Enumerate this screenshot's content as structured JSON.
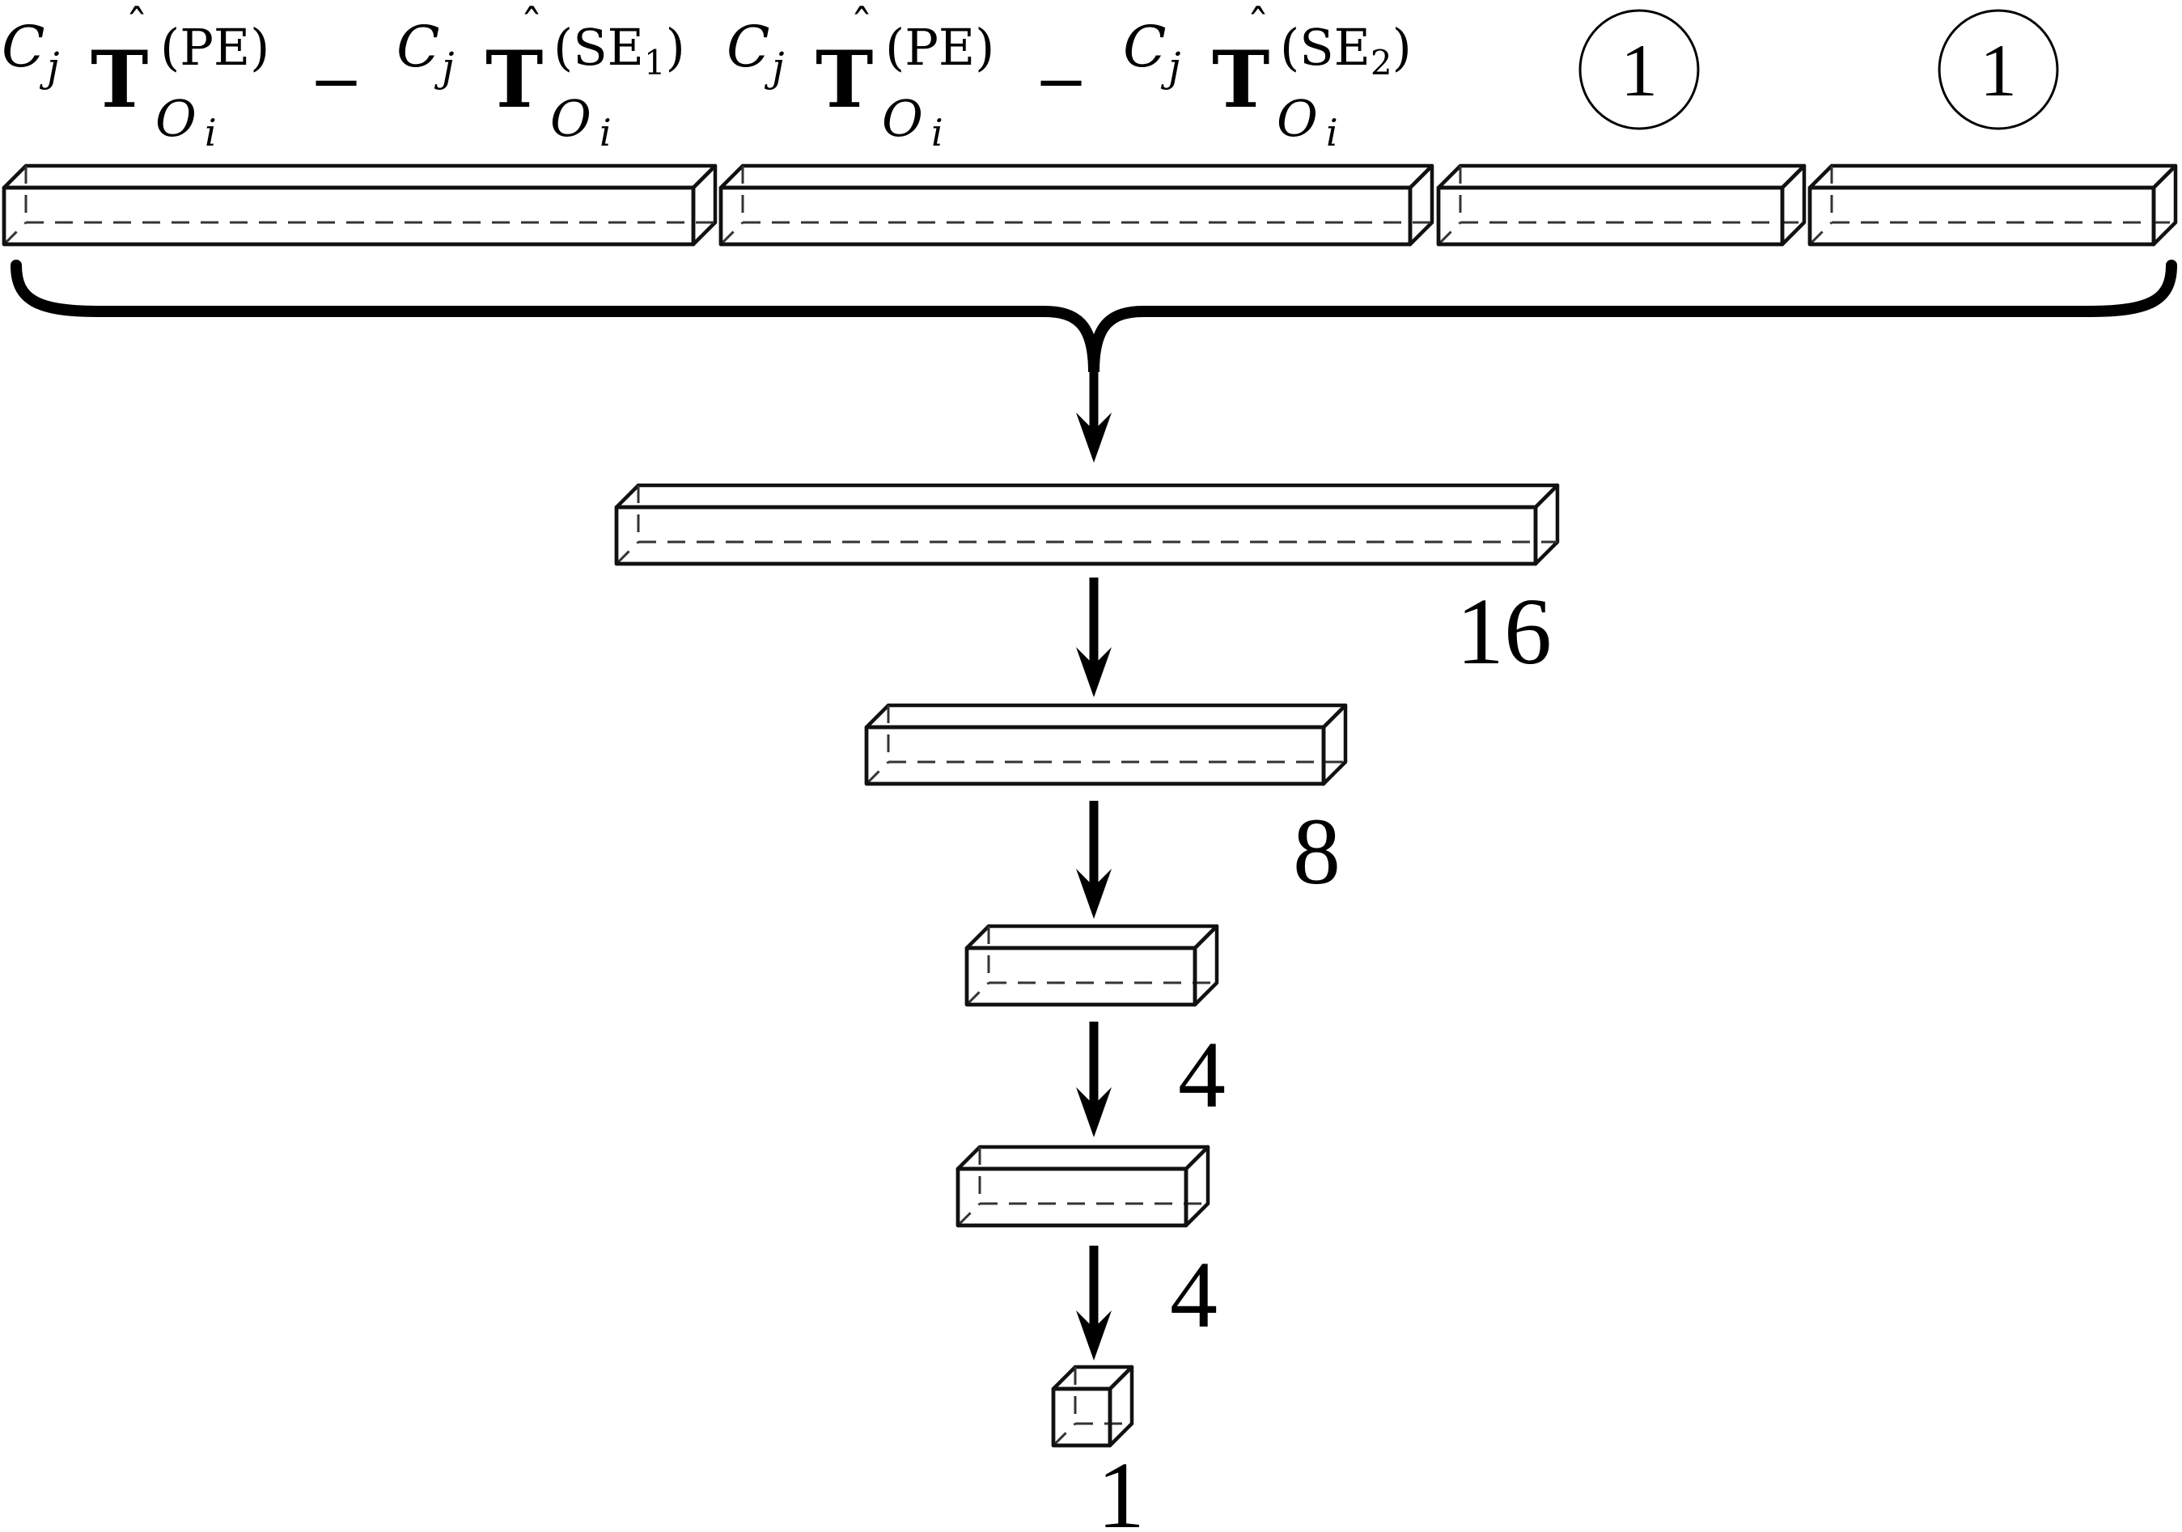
{
  "colors": {
    "orange": "#ffc080",
    "blue": "#a9a9ff",
    "gray": "#d6d6d6",
    "green": "#66cc99",
    "pink": "#d4609a",
    "edge": "#111111"
  },
  "inputs": {
    "input1": {
      "coef": "C",
      "coef_sub": "j",
      "op": "T",
      "sup": "(PE)",
      "sub_main": "O",
      "sub_sub": "i",
      "minus": "−",
      "coef2": "C",
      "coef2_sub": "j",
      "op2": "T",
      "sup2_main": "(SE",
      "sup2_sub": "1",
      "sup2_close": ")",
      "sub2_main": "O",
      "sub2_sub": "i"
    },
    "input2": {
      "coef": "C",
      "coef_sub": "j",
      "op": "T",
      "sup": "(PE)",
      "sub_main": "O",
      "sub_sub": "i",
      "minus": "−",
      "coef2": "C",
      "coef2_sub": "j",
      "op2": "T",
      "sup2_main": "(SE",
      "sup2_sub": "2",
      "sup2_close": ")",
      "sub2_main": "O",
      "sub2_sub": "i"
    },
    "input3": {
      "label": "1"
    },
    "input4": {
      "label": "1"
    }
  },
  "layers": [
    {
      "size": "16"
    },
    {
      "size": "8"
    },
    {
      "size": "4"
    },
    {
      "size": "4"
    },
    {
      "size": "1"
    }
  ]
}
